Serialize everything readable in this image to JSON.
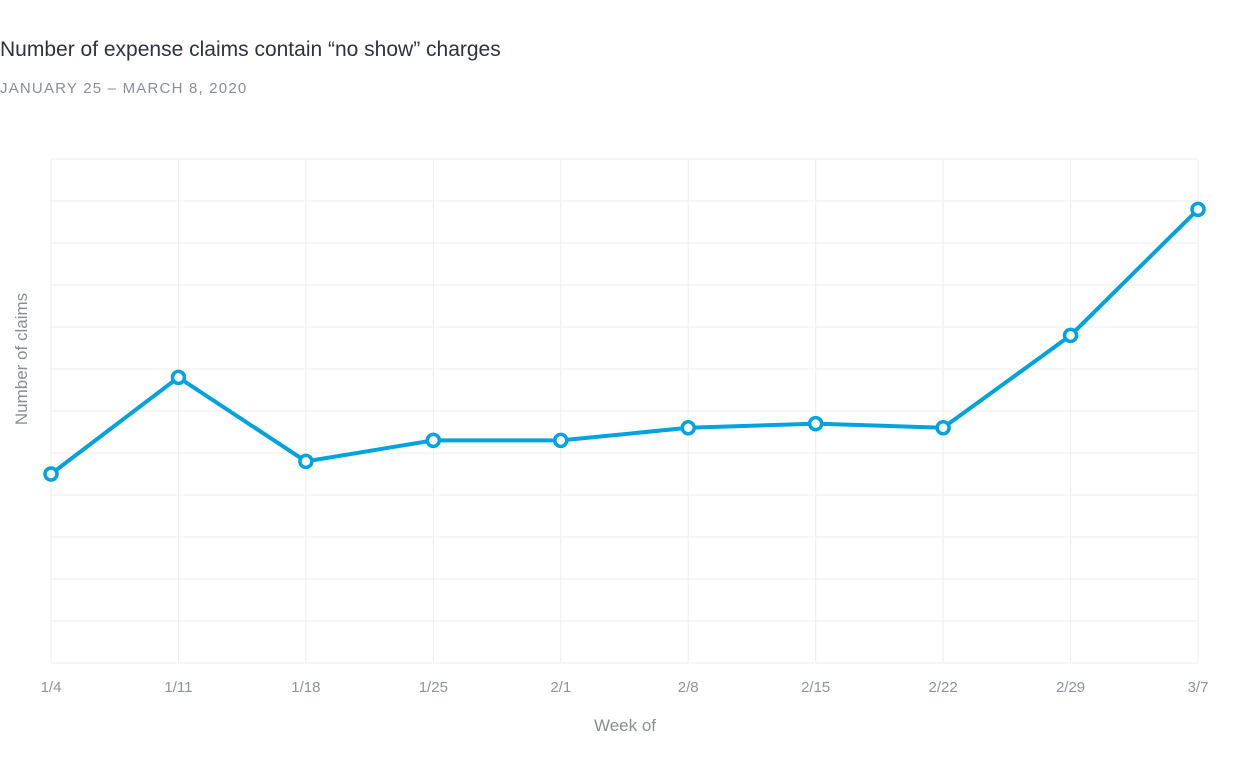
{
  "chart_data": {
    "type": "line",
    "title": "Number of expense claims contain “no show” charges",
    "subtitle": "JANUARY 25 – MARCH 8, 2020",
    "xlabel": "Week of",
    "ylabel": "Number of claims",
    "categories": [
      "1/4",
      "1/11",
      "1/18",
      "1/25",
      "2/1",
      "2/8",
      "2/15",
      "2/22",
      "2/29",
      "3/7"
    ],
    "series": [
      {
        "values": [
          4.5,
          6.8,
          4.8,
          5.3,
          5.3,
          5.6,
          5.7,
          5.6,
          7.8,
          10.8
        ]
      }
    ],
    "ylim": [
      0,
      12
    ],
    "y_tick_step": 1,
    "grid": true,
    "legend": "none",
    "colors": {
      "line": "#00a3e0",
      "grid": "#eeeeee",
      "point_fill": "#ffffff"
    }
  }
}
